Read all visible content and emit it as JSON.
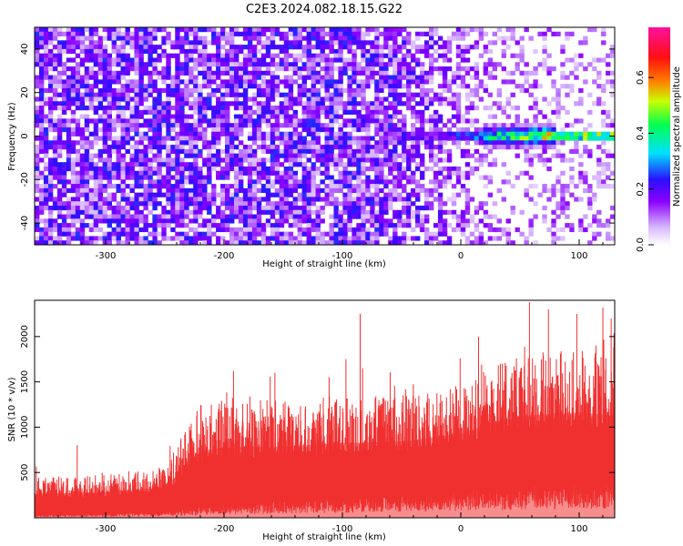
{
  "title": "C2E3.2024.082.18.15.G22",
  "chart_data": [
    {
      "type": "heatmap",
      "xlabel": "Height of straight line (km)",
      "ylabel": "Frequency (Hz)",
      "xlim": [
        -360,
        130
      ],
      "ylim": [
        -50,
        50
      ],
      "xticks": [
        -300,
        -200,
        -100,
        0,
        100
      ],
      "yticks": [
        -40,
        -20,
        0,
        20,
        40
      ],
      "colorbar": {
        "label": "Normalized spectral amplitude",
        "range": [
          0.0,
          0.78
        ],
        "ticks": [
          0.0,
          0.2,
          0.4,
          0.6
        ],
        "colormap": "white-violet-blue-cyan-green-yellow-red-magenta"
      },
      "features": {
        "background": "dense violet noise on the left, fading toward white for heights above about -20 km",
        "signal_band": {
          "frequency": 0,
          "x_start": -70,
          "x_end": 130,
          "amplitude_range": [
            0.15,
            0.75
          ]
        }
      }
    },
    {
      "type": "area",
      "xlabel": "Height of straight line (km)",
      "ylabel": "SNR (10 * v/v)",
      "xlim": [
        -360,
        130
      ],
      "ylim": [
        0,
        2400
      ],
      "xticks": [
        -300,
        -200,
        -100,
        0,
        100
      ],
      "yticks": [
        500,
        1000,
        1500,
        2000
      ],
      "series_color": "#f03030",
      "envelope": {
        "x": [
          -360,
          -300,
          -250,
          -235,
          -220,
          -200,
          -150,
          -100,
          -50,
          0,
          30,
          60,
          100,
          130
        ],
        "upper": [
          450,
          480,
          560,
          900,
          1250,
          1320,
          1300,
          1350,
          1350,
          1480,
          1700,
          1820,
          1850,
          1800
        ],
        "lower": [
          30,
          40,
          60,
          80,
          100,
          120,
          160,
          180,
          220,
          250,
          280,
          300,
          320,
          300
        ],
        "spikes": [
          [
            -324,
            800
          ],
          [
            -192,
            1620
          ],
          [
            -161,
            1560
          ],
          [
            -157,
            1600
          ],
          [
            -85,
            2250
          ],
          [
            -97,
            1750
          ],
          [
            15,
            2000
          ],
          [
            58,
            2380
          ],
          [
            74,
            2300
          ],
          [
            98,
            2250
          ],
          [
            120,
            2320
          ],
          [
            127,
            2200
          ]
        ]
      }
    }
  ]
}
